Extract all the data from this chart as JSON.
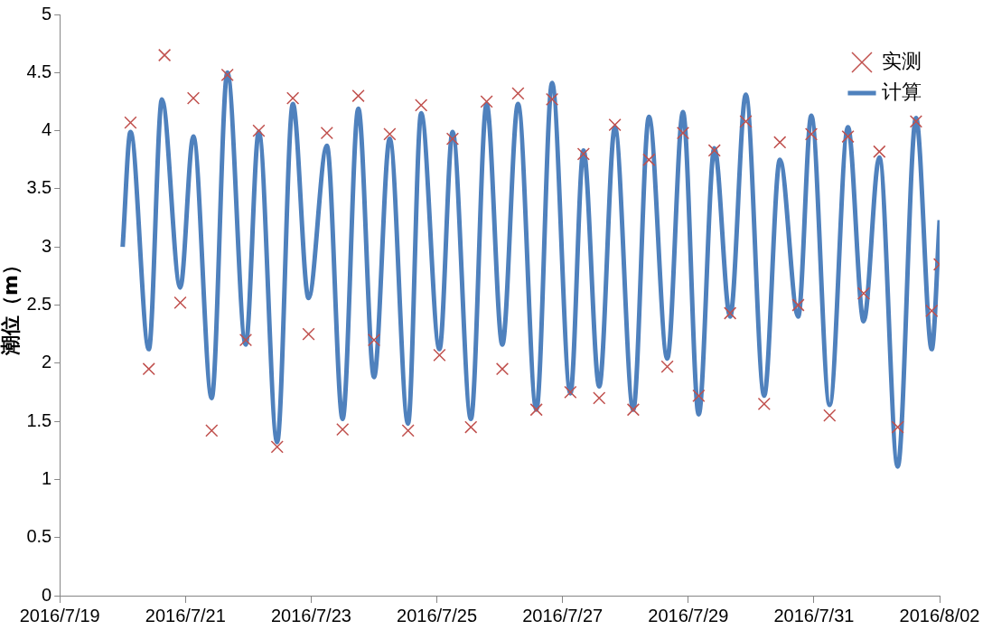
{
  "chart_data": {
    "type": "line",
    "ylabel": "潮位（m）",
    "legend": "top right",
    "grid": false,
    "xlim": [
      "2016-07-19",
      "2016-08-02"
    ],
    "xticks": [
      {
        "value": "2016-07-19",
        "label": "2016/7/19"
      },
      {
        "value": "2016-07-21",
        "label": "2016/7/21"
      },
      {
        "value": "2016-07-23",
        "label": "2016/7/23"
      },
      {
        "value": "2016-07-25",
        "label": "2016/7/25"
      },
      {
        "value": "2016-07-27",
        "label": "2016/7/27"
      },
      {
        "value": "2016-07-29",
        "label": "2016/7/29"
      },
      {
        "value": "2016-07-31",
        "label": "2016/7/31"
      },
      {
        "value": "2016-08-02",
        "label": "2016/8/02"
      }
    ],
    "ylim": [
      0,
      5
    ],
    "yticks": [
      0,
      0.5,
      1,
      1.5,
      2,
      2.5,
      3,
      3.5,
      4,
      4.5,
      5
    ],
    "series": [
      {
        "name": "实测",
        "type": "scatter",
        "marker": "cross",
        "color": "#c0504d",
        "x": [
          "2016-07-20T03:00",
          "2016-07-20T10:00",
          "2016-07-20T16:00",
          "2016-07-20T22:00",
          "2016-07-21T03:00",
          "2016-07-21T10:00",
          "2016-07-21T16:00",
          "2016-07-21T23:00",
          "2016-07-22T04:00",
          "2016-07-22T11:00",
          "2016-07-22T17:00",
          "2016-07-22T23:00",
          "2016-07-23T06:00",
          "2016-07-23T12:00",
          "2016-07-23T18:00",
          "2016-07-24T00:00",
          "2016-07-24T06:00",
          "2016-07-24T13:00",
          "2016-07-24T18:00",
          "2016-07-25T01:00",
          "2016-07-25T06:00",
          "2016-07-25T13:00",
          "2016-07-25T19:00",
          "2016-07-26T01:00",
          "2016-07-26T07:00",
          "2016-07-26T14:00",
          "2016-07-26T20:00",
          "2016-07-27T03:00",
          "2016-07-27T08:00",
          "2016-07-27T14:00",
          "2016-07-27T20:00",
          "2016-07-28T03:00",
          "2016-07-28T09:00",
          "2016-07-28T16:00",
          "2016-07-28T22:00",
          "2016-07-29T04:00",
          "2016-07-29T10:00",
          "2016-07-29T16:00",
          "2016-07-29T22:00",
          "2016-07-30T05:00",
          "2016-07-30T11:00",
          "2016-07-30T18:00",
          "2016-07-30T23:00",
          "2016-07-31T06:00",
          "2016-07-31T13:00",
          "2016-07-31T19:00",
          "2016-08-01T01:00",
          "2016-08-01T08:00",
          "2016-08-01T15:00",
          "2016-08-01T21:00",
          "2016-08-02T00:00"
        ],
        "values": [
          4.07,
          1.95,
          4.65,
          2.52,
          4.28,
          1.42,
          4.48,
          2.2,
          4.0,
          1.28,
          4.28,
          2.25,
          3.98,
          1.43,
          4.3,
          2.2,
          3.97,
          1.42,
          4.22,
          2.07,
          3.93,
          1.45,
          4.25,
          1.95,
          4.32,
          1.6,
          4.27,
          1.75,
          3.8,
          1.7,
          4.05,
          1.6,
          3.75,
          1.97,
          3.98,
          1.72,
          3.83,
          2.43,
          4.08,
          1.65,
          3.9,
          2.5,
          3.97,
          1.55,
          3.95,
          2.6,
          3.82,
          1.45,
          4.08,
          2.45,
          2.85
        ]
      },
      {
        "name": "计算",
        "type": "line",
        "line_style": "solid",
        "color": "#4f81bd",
        "x": [
          "2016-07-20T00:00",
          "2016-07-20T03:00",
          "2016-07-20T10:00",
          "2016-07-20T15:00",
          "2016-07-20T22:00",
          "2016-07-21T03:00",
          "2016-07-21T10:00",
          "2016-07-21T16:00",
          "2016-07-21T23:00",
          "2016-07-22T04:00",
          "2016-07-22T11:00",
          "2016-07-22T17:00",
          "2016-07-22T23:00",
          "2016-07-23T06:00",
          "2016-07-23T12:00",
          "2016-07-23T18:00",
          "2016-07-24T00:00",
          "2016-07-24T06:00",
          "2016-07-24T13:00",
          "2016-07-24T18:00",
          "2016-07-25T01:00",
          "2016-07-25T06:00",
          "2016-07-25T13:00",
          "2016-07-25T19:00",
          "2016-07-26T01:00",
          "2016-07-26T07:00",
          "2016-07-26T14:00",
          "2016-07-26T20:00",
          "2016-07-27T03:00",
          "2016-07-27T08:00",
          "2016-07-27T14:00",
          "2016-07-27T20:00",
          "2016-07-28T03:00",
          "2016-07-28T09:00",
          "2016-07-28T16:00",
          "2016-07-28T22:00",
          "2016-07-29T04:00",
          "2016-07-29T10:00",
          "2016-07-29T16:00",
          "2016-07-29T22:00",
          "2016-07-30T05:00",
          "2016-07-30T11:00",
          "2016-07-30T18:00",
          "2016-07-30T23:00",
          "2016-07-31T06:00",
          "2016-07-31T13:00",
          "2016-07-31T19:00",
          "2016-08-01T01:00",
          "2016-08-01T08:00",
          "2016-08-01T15:00",
          "2016-08-01T21:00",
          "2016-08-02T00:00"
        ],
        "values": [
          3.0,
          3.99,
          2.12,
          4.27,
          2.65,
          3.95,
          1.7,
          4.5,
          2.16,
          3.99,
          1.32,
          4.23,
          2.56,
          3.87,
          1.52,
          4.19,
          1.88,
          3.93,
          1.48,
          4.15,
          2.12,
          3.99,
          1.52,
          4.23,
          2.16,
          4.23,
          1.6,
          4.41,
          1.74,
          3.83,
          1.8,
          4.03,
          1.6,
          4.12,
          2.04,
          4.16,
          1.56,
          3.85,
          2.4,
          4.31,
          1.72,
          3.75,
          2.4,
          4.13,
          1.64,
          4.03,
          2.36,
          3.77,
          1.11,
          4.11,
          2.12,
          3.23
        ]
      }
    ]
  }
}
